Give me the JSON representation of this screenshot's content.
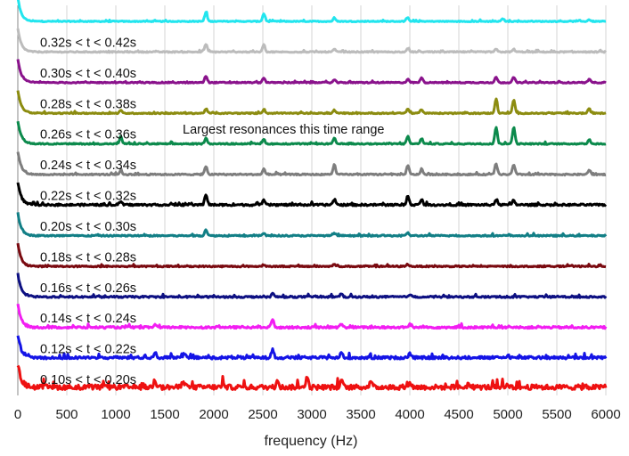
{
  "chart_data": {
    "type": "line",
    "title": "",
    "xlabel": "frequency (Hz)",
    "ylabel": "",
    "xlim": [
      0,
      6000
    ],
    "xticks": [
      0,
      500,
      1000,
      1500,
      2000,
      2500,
      3000,
      3500,
      4000,
      4500,
      5000,
      5500,
      6000
    ],
    "grid": "vertical",
    "annotation": "Largest resonances this time range",
    "series": [
      {
        "label": "",
        "color": "#22e5ee",
        "noise": 0.1,
        "peaks": [
          [
            1920,
            1.0
          ],
          [
            2510,
            0.85
          ],
          [
            3230,
            0.35
          ],
          [
            3980,
            0.4
          ],
          [
            4950,
            0.3
          ],
          [
            5830,
            0.2
          ]
        ]
      },
      {
        "label": "0.32s < t < 0.42s",
        "color": "#bcbcbc",
        "noise": 0.12,
        "peaks": [
          [
            1920,
            0.9
          ],
          [
            2510,
            0.8
          ],
          [
            3230,
            0.3
          ],
          [
            3980,
            0.35
          ],
          [
            4880,
            0.3
          ],
          [
            5060,
            0.3
          ]
        ]
      },
      {
        "label": "0.30s < t < 0.40s",
        "color": "#8a138c",
        "noise": 0.12,
        "peaks": [
          [
            1920,
            0.75
          ],
          [
            2510,
            0.55
          ],
          [
            3230,
            0.3
          ],
          [
            3980,
            0.4
          ],
          [
            4120,
            0.55
          ],
          [
            4880,
            0.65
          ],
          [
            5060,
            0.6
          ],
          [
            5830,
            0.35
          ]
        ]
      },
      {
        "label": "0.28s < t < 0.38s",
        "color": "#8c8c10",
        "noise": 0.12,
        "peaks": [
          [
            1050,
            0.3
          ],
          [
            1920,
            0.5
          ],
          [
            2510,
            0.4
          ],
          [
            3230,
            0.35
          ],
          [
            3980,
            0.5
          ],
          [
            4120,
            0.45
          ],
          [
            4880,
            1.6
          ],
          [
            5060,
            1.5
          ],
          [
            5830,
            0.5
          ]
        ]
      },
      {
        "label": "0.26s < t < 0.36s",
        "color": "#0c8a4c",
        "noise": 0.13,
        "peaks": [
          [
            1050,
            0.8
          ],
          [
            1920,
            0.7
          ],
          [
            2510,
            0.5
          ],
          [
            3230,
            0.6
          ],
          [
            3980,
            0.8
          ],
          [
            4120,
            0.6
          ],
          [
            4880,
            1.9
          ],
          [
            5060,
            1.9
          ],
          [
            5830,
            0.5
          ]
        ]
      },
      {
        "label": "0.24s < t < 0.34s",
        "color": "#7e7e7e",
        "noise": 0.14,
        "peaks": [
          [
            1050,
            0.4
          ],
          [
            1920,
            0.9
          ],
          [
            2510,
            0.6
          ],
          [
            3230,
            1.1
          ],
          [
            3980,
            1.0
          ],
          [
            4120,
            0.6
          ],
          [
            4880,
            1.2
          ],
          [
            5060,
            1.1
          ],
          [
            5830,
            0.5
          ]
        ]
      },
      {
        "label": "0.22s < t < 0.32s",
        "color": "#000000",
        "noise": 0.2,
        "peaks": [
          [
            1050,
            0.4
          ],
          [
            1920,
            1.2
          ],
          [
            2510,
            0.5
          ],
          [
            3230,
            0.6
          ],
          [
            3980,
            1.0
          ],
          [
            4120,
            0.6
          ],
          [
            4880,
            0.5
          ],
          [
            5060,
            0.5
          ]
        ]
      },
      {
        "label": "0.20s < t < 0.30s",
        "color": "#127f86",
        "noise": 0.15,
        "peaks": [
          [
            1920,
            0.7
          ],
          [
            2510,
            0.3
          ],
          [
            3230,
            0.3
          ],
          [
            3980,
            0.3
          ]
        ]
      },
      {
        "label": "0.18s < t < 0.28s",
        "color": "#7a0a10",
        "noise": 0.15,
        "peaks": [
          [
            2510,
            0.2
          ],
          [
            3230,
            0.25
          ],
          [
            3980,
            0.25
          ]
        ]
      },
      {
        "label": "0.16s < t < 0.26s",
        "color": "#0d1082",
        "noise": 0.18,
        "peaks": [
          [
            2600,
            0.35
          ],
          [
            3300,
            0.3
          ],
          [
            4000,
            0.3
          ]
        ]
      },
      {
        "label": "0.14s < t < 0.24s",
        "color": "#f21ef2",
        "noise": 0.22,
        "peaks": [
          [
            1400,
            0.3
          ],
          [
            2600,
            0.9
          ],
          [
            3300,
            0.4
          ],
          [
            4000,
            0.35
          ]
        ]
      },
      {
        "label": "0.12s < t < 0.22s",
        "color": "#1414e6",
        "noise": 0.3,
        "peaks": [
          [
            1400,
            0.6
          ],
          [
            1700,
            0.5
          ],
          [
            2600,
            0.9
          ],
          [
            3300,
            0.6
          ],
          [
            4000,
            0.5
          ],
          [
            5000,
            0.3
          ]
        ]
      },
      {
        "label": "0.10s < t < 0.20s",
        "color": "#ee1111",
        "noise": 0.55,
        "peaks": [
          [
            1400,
            0.8
          ],
          [
            1700,
            0.5
          ],
          [
            2100,
            0.5
          ],
          [
            2650,
            0.9
          ],
          [
            2950,
            1.2
          ],
          [
            3300,
            0.9
          ],
          [
            3600,
            0.7
          ],
          [
            4000,
            0.6
          ],
          [
            4600,
            0.4
          ],
          [
            5000,
            0.4
          ]
        ]
      }
    ]
  }
}
